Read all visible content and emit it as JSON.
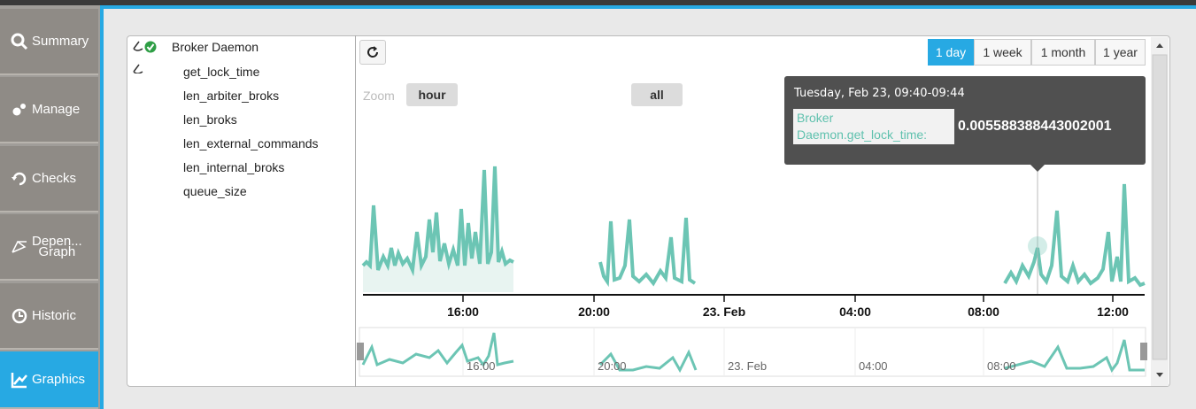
{
  "sidebar": {
    "tabs": [
      {
        "lines": [
          "Summary"
        ]
      },
      {
        "lines": [
          "Manage"
        ]
      },
      {
        "lines": [
          "Checks"
        ]
      },
      {
        "lines": [
          "Depen...",
          "Graph"
        ]
      },
      {
        "lines": [
          "Historic"
        ]
      },
      {
        "lines": [
          "Graphics"
        ],
        "active": true
      }
    ]
  },
  "tree": {
    "root": "Broker Daemon",
    "items": [
      "get_lock_time",
      "len_arbiter_broks",
      "len_broks",
      "len_external_commands",
      "len_internal_broks",
      "queue_size"
    ]
  },
  "chart": {
    "range_buttons": [
      "1 day",
      "1 week",
      "1 month",
      "1 year"
    ],
    "active_range": 0,
    "zoom_label": "Zoom",
    "zoom_buttons": [
      "hour",
      "all"
    ],
    "tooltip": {
      "time": "Tuesday, Feb 23, 09:40-09:44",
      "series": "Broker Daemon.get_lock_time:",
      "value": "0.005588388443002001"
    },
    "x_labels": [
      "16:00",
      "20:00",
      "23. Feb",
      "04:00",
      "08:00",
      "12:00"
    ],
    "navigator_labels": [
      "16:00",
      "20:00",
      "23. Feb",
      "04:00",
      "08:00"
    ]
  }
}
